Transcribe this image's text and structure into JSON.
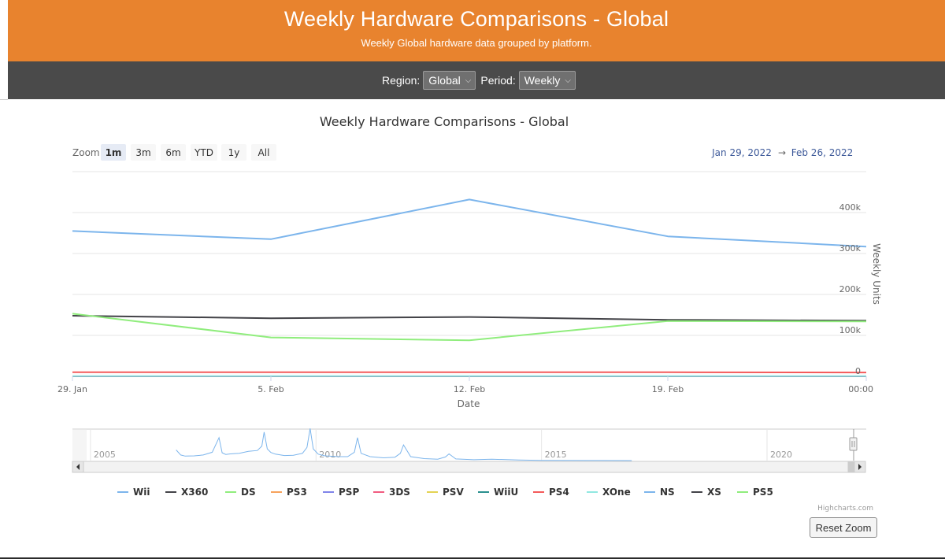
{
  "header": {
    "title": "Weekly Hardware Comparisons - Global",
    "subtitle": "Weekly Global hardware data grouped by platform."
  },
  "filters": {
    "region_label": "Region:",
    "region_value": "Global",
    "period_label": "Period:",
    "period_value": "Weekly"
  },
  "range_selector": {
    "zoom_label": "Zoom",
    "buttons": [
      "1m",
      "3m",
      "6m",
      "YTD",
      "1y",
      "All"
    ],
    "selected": "1m",
    "from_date": "Jan 29, 2022",
    "arrow": "→",
    "to_date": "Feb 26, 2022"
  },
  "credits": "Highcharts.com",
  "reset_zoom_label": "Reset Zoom",
  "colors": {
    "banner": "#e8832e",
    "filter_bar": "#4a4a4a",
    "date_text": "#3e5a9a"
  },
  "chart_data": {
    "type": "line",
    "title": "Weekly Hardware Comparisons - Global",
    "xlabel": "Date",
    "ylabel": "Weekly Units",
    "x": [
      "2022-01-29",
      "2022-02-05",
      "2022-02-12",
      "2022-02-19",
      "2022-02-26"
    ],
    "x_tick_labels": [
      "29. Jan",
      "5. Feb",
      "12. Feb",
      "19. Feb",
      "00:00"
    ],
    "y_ticks": [
      0,
      100000,
      200000,
      300000,
      400000
    ],
    "y_tick_labels": [
      "0",
      "100k",
      "200k",
      "300k",
      "400k"
    ],
    "ylim": [
      0,
      500000
    ],
    "grid": true,
    "legend_position": "bottom",
    "series": [
      {
        "name": "Wii",
        "color": "#7cb5ec",
        "values": [
          0,
          0,
          0,
          0,
          0
        ]
      },
      {
        "name": "X360",
        "color": "#434348",
        "values": [
          0,
          0,
          0,
          0,
          0
        ]
      },
      {
        "name": "DS",
        "color": "#90ed7d",
        "values": [
          0,
          0,
          0,
          0,
          0
        ]
      },
      {
        "name": "PS3",
        "color": "#f7a35c",
        "values": [
          0,
          0,
          0,
          0,
          0
        ]
      },
      {
        "name": "PSP",
        "color": "#8085e9",
        "values": [
          0,
          0,
          0,
          0,
          0
        ]
      },
      {
        "name": "3DS",
        "color": "#f15c80",
        "values": [
          0,
          0,
          0,
          0,
          0
        ]
      },
      {
        "name": "PSV",
        "color": "#e4d354",
        "values": [
          0,
          0,
          0,
          0,
          0
        ]
      },
      {
        "name": "WiiU",
        "color": "#2b908f",
        "values": [
          0,
          0,
          0,
          0,
          0
        ]
      },
      {
        "name": "PS4",
        "color": "#f45b5b",
        "values": [
          10000,
          10000,
          10000,
          10000,
          9500
        ]
      },
      {
        "name": "XOne",
        "color": "#91e8e1",
        "values": [
          1000,
          1000,
          1000,
          1000,
          1000
        ]
      },
      {
        "name": "NS",
        "color": "#7cb5ec",
        "values": [
          355000,
          335000,
          432000,
          342000,
          317000
        ]
      },
      {
        "name": "XS",
        "color": "#434348",
        "values": [
          148000,
          142000,
          145000,
          138000,
          136000
        ]
      },
      {
        "name": "PS5",
        "color": "#90ed7d",
        "values": [
          153000,
          95000,
          88000,
          135000,
          134000
        ]
      }
    ],
    "navigator": {
      "x_tick_labels": [
        "2005",
        "2010",
        "2015",
        "2020"
      ],
      "x_ticks": [
        2005,
        2010,
        2015,
        2020
      ],
      "xlim": [
        2004.6,
        2022.2
      ],
      "ylim": [
        0,
        1100000
      ],
      "series_name": "Wii",
      "x": [
        2006.9,
        2007.0,
        2007.1,
        2007.3,
        2007.5,
        2007.7,
        2007.85,
        2007.92,
        2008.0,
        2008.1,
        2008.3,
        2008.5,
        2008.7,
        2008.8,
        2008.85,
        2008.92,
        2009.0,
        2009.1,
        2009.3,
        2009.5,
        2009.7,
        2009.8,
        2009.87,
        2009.94,
        2010.05,
        2010.2,
        2010.5,
        2010.7,
        2010.85,
        2010.92,
        2011.0,
        2011.2,
        2011.5,
        2011.75,
        2011.87,
        2011.94,
        2012.1,
        2012.4,
        2012.7,
        2012.87,
        2012.95,
        2013.1,
        2013.5,
        2013.9,
        2014.5,
        2015.0,
        2016.0,
        2017.0
      ],
      "values": [
        380000,
        200000,
        160000,
        170000,
        200000,
        300000,
        820000,
        280000,
        220000,
        240000,
        260000,
        330000,
        360000,
        520000,
        1020000,
        420000,
        290000,
        230000,
        180000,
        190000,
        260000,
        470000,
        1150000,
        420000,
        230000,
        170000,
        140000,
        140000,
        300000,
        820000,
        260000,
        140000,
        100000,
        120000,
        260000,
        560000,
        140000,
        70000,
        50000,
        130000,
        240000,
        60000,
        30000,
        50000,
        20000,
        8000,
        4000,
        1000
      ]
    }
  }
}
